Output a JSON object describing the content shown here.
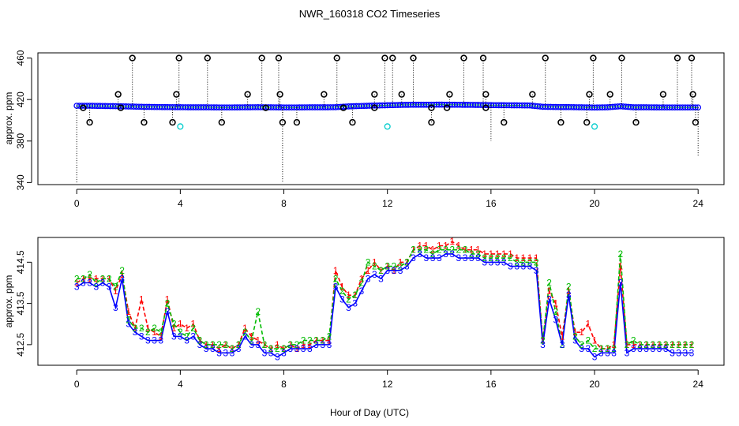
{
  "chart_data": [
    {
      "type": "scatter",
      "title": "NWR_160318  CO2 Timeseries",
      "xlabel": "",
      "ylabel": "approx. ppm",
      "xlim": [
        -1.5,
        25
      ],
      "ylim": [
        338,
        465
      ],
      "xticks": [
        "0",
        "4",
        "8",
        "12",
        "16",
        "20",
        "24"
      ],
      "yticks": [
        "340",
        "380",
        "420",
        "460"
      ],
      "grid": false,
      "baseline": {
        "x": [
          0.0,
          0.5,
          1.0,
          1.5,
          2.0,
          2.5,
          3.0,
          3.5,
          4.0,
          4.5,
          5.0,
          5.5,
          6.0,
          6.5,
          7.0,
          7.5,
          8.0,
          8.5,
          9.0,
          9.5,
          10.0,
          10.5,
          11.0,
          11.5,
          12.0,
          12.5,
          13.0,
          13.5,
          14.0,
          14.5,
          15.0,
          15.5,
          16.0,
          16.5,
          17.0,
          17.5,
          18.0,
          18.5,
          19.0,
          19.5,
          20.0,
          20.5,
          21.0,
          21.5,
          22.0,
          22.5,
          23.0,
          23.5,
          24.0
        ],
        "y": [
          414.0,
          414.0,
          413.8,
          413.6,
          413.3,
          413.0,
          412.8,
          412.7,
          412.6,
          412.5,
          412.5,
          412.4,
          412.4,
          412.5,
          412.6,
          412.5,
          412.4,
          412.4,
          412.5,
          412.5,
          412.6,
          413.4,
          413.8,
          414.2,
          414.5,
          414.8,
          415.0,
          415.0,
          415.1,
          415.0,
          414.9,
          414.8,
          414.6,
          414.5,
          414.4,
          414.3,
          413.0,
          412.8,
          412.7,
          412.5,
          412.3,
          412.5,
          413.5,
          412.5,
          412.5,
          412.4,
          412.4,
          412.4,
          412.4
        ]
      },
      "series": [
        {
          "name": "",
          "color": "#000000",
          "marker": "open-circle",
          "x": [
            1.6,
            2.15,
            3.85,
            3.95,
            5.05,
            7.15,
            7.8,
            9.55,
            10.05,
            11.5,
            11.9,
            12.2,
            12.55,
            13.0,
            13.7,
            14.4,
            14.95,
            15.7,
            15.8,
            17.6,
            18.1,
            19.8,
            19.95,
            20.6,
            21.05,
            22.65,
            23.2,
            23.75,
            23.8,
            0.25,
            0.5,
            1.7,
            2.6,
            3.7,
            5.6,
            6.6,
            7.3,
            7.85,
            7.95,
            8.5,
            10.3,
            10.65,
            11.5,
            13.7,
            14.3,
            15.8,
            16.5,
            18.7,
            19.7,
            21.6,
            23.9
          ],
          "y": [
            425,
            460,
            425,
            460,
            460,
            460,
            460,
            425,
            460,
            425,
            460,
            460,
            425,
            460,
            412,
            425,
            460,
            460,
            425,
            425,
            460,
            425,
            460,
            425,
            460,
            425,
            460,
            460,
            425,
            412,
            398,
            412,
            398,
            398,
            398,
            425,
            412,
            425,
            398,
            398,
            412,
            398,
            412,
            398,
            412,
            412,
            398,
            398,
            398,
            398,
            398
          ]
        },
        {
          "name": "",
          "color": "#00cccc",
          "marker": "open-circle",
          "x": [
            4.0,
            12.0,
            20.0
          ],
          "y": [
            394,
            394,
            394
          ]
        },
        {
          "name": "",
          "color": "#000000",
          "marker": "spike",
          "x": [
            0.0,
            7.95,
            16.0,
            24.0
          ],
          "y": [
            340,
            340,
            380,
            365
          ]
        }
      ]
    },
    {
      "type": "line",
      "title": "",
      "xlabel": "Hour of Day (UTC)",
      "ylabel": "approx. ppm",
      "xlim": [
        -1.5,
        25
      ],
      "ylim": [
        412.0,
        415.1
      ],
      "xticks": [
        "0",
        "4",
        "8",
        "12",
        "16",
        "20",
        "24"
      ],
      "yticks": [
        "412.5",
        "413.5",
        "414.5"
      ],
      "grid": false,
      "series": [
        {
          "name": "1",
          "color": "#ff0000",
          "x": [
            0.0,
            0.25,
            0.5,
            0.75,
            1.0,
            1.25,
            1.5,
            1.75,
            2.0,
            2.25,
            2.5,
            2.75,
            3.0,
            3.25,
            3.5,
            3.75,
            4.0,
            4.25,
            4.5,
            4.75,
            5.0,
            5.25,
            5.5,
            5.75,
            6.0,
            6.25,
            6.5,
            6.75,
            7.0,
            7.25,
            7.5,
            7.75,
            8.0,
            8.25,
            8.5,
            8.75,
            9.0,
            9.25,
            9.5,
            9.75,
            10.0,
            10.25,
            10.5,
            10.75,
            11.0,
            11.25,
            11.5,
            11.75,
            12.0,
            12.25,
            12.5,
            12.75,
            13.0,
            13.25,
            13.5,
            13.75,
            14.0,
            14.25,
            14.5,
            14.75,
            15.0,
            15.25,
            15.5,
            15.75,
            16.0,
            16.25,
            16.5,
            16.75,
            17.0,
            17.25,
            17.5,
            17.75,
            18.0,
            18.25,
            18.5,
            18.75,
            19.0,
            19.25,
            19.5,
            19.75,
            20.0,
            20.25,
            20.5,
            20.75,
            21.0,
            21.25,
            21.5,
            21.75,
            22.0,
            22.25,
            22.5,
            22.75,
            23.0,
            23.25,
            23.5,
            23.75
          ],
          "y": [
            414.0,
            414.1,
            414.1,
            414.1,
            414.1,
            414.1,
            413.8,
            414.2,
            413.3,
            412.9,
            413.6,
            412.9,
            412.8,
            412.7,
            413.6,
            412.9,
            413.0,
            412.9,
            413.0,
            412.6,
            412.5,
            412.5,
            412.4,
            412.5,
            412.4,
            412.5,
            412.9,
            412.7,
            412.6,
            412.5,
            412.4,
            412.5,
            412.4,
            412.5,
            412.4,
            412.5,
            412.5,
            412.6,
            412.6,
            412.6,
            414.3,
            413.9,
            413.7,
            413.7,
            414.1,
            414.3,
            414.5,
            414.3,
            414.4,
            414.3,
            414.5,
            414.5,
            414.8,
            414.9,
            414.9,
            414.8,
            414.9,
            414.9,
            415.0,
            414.9,
            414.8,
            414.8,
            414.8,
            414.7,
            414.7,
            414.7,
            414.7,
            414.7,
            414.6,
            414.6,
            414.6,
            414.6,
            412.6,
            413.8,
            413.5,
            412.7,
            413.8,
            412.8,
            412.8,
            413.0,
            412.6,
            412.4,
            412.4,
            412.5,
            414.4,
            412.5,
            412.5,
            412.5,
            412.5,
            412.5,
            412.5,
            412.5,
            412.5,
            412.5,
            412.5,
            412.5
          ]
        },
        {
          "name": "2",
          "color": "#00bb00",
          "x": [
            0.0,
            0.25,
            0.5,
            0.75,
            1.0,
            1.25,
            1.5,
            1.75,
            2.0,
            2.25,
            2.5,
            2.75,
            3.0,
            3.25,
            3.5,
            3.75,
            4.0,
            4.25,
            4.5,
            4.75,
            5.0,
            5.25,
            5.5,
            5.75,
            6.0,
            6.25,
            6.5,
            6.75,
            7.0,
            7.25,
            7.5,
            7.75,
            8.0,
            8.25,
            8.5,
            8.75,
            9.0,
            9.25,
            9.5,
            9.75,
            10.0,
            10.25,
            10.5,
            10.75,
            11.0,
            11.25,
            11.5,
            11.75,
            12.0,
            12.25,
            12.5,
            12.75,
            13.0,
            13.25,
            13.5,
            13.75,
            14.0,
            14.25,
            14.5,
            14.75,
            15.0,
            15.25,
            15.5,
            15.75,
            16.0,
            16.25,
            16.5,
            16.75,
            17.0,
            17.25,
            17.5,
            17.75,
            18.0,
            18.25,
            18.5,
            18.75,
            19.0,
            19.25,
            19.5,
            19.75,
            20.0,
            20.25,
            20.5,
            20.75,
            21.0,
            21.25,
            21.5,
            21.75,
            22.0,
            22.25,
            22.5,
            22.75,
            23.0,
            23.25,
            23.5,
            23.75
          ],
          "y": [
            414.1,
            414.1,
            414.2,
            414.0,
            414.1,
            414.1,
            413.9,
            414.3,
            413.1,
            412.9,
            412.9,
            412.8,
            412.9,
            412.8,
            413.5,
            413.0,
            412.8,
            412.7,
            412.9,
            412.6,
            412.5,
            412.5,
            412.5,
            412.5,
            412.4,
            412.5,
            412.8,
            412.6,
            413.3,
            412.5,
            412.4,
            412.4,
            412.4,
            412.5,
            412.5,
            412.6,
            412.6,
            412.6,
            412.6,
            412.7,
            414.1,
            413.8,
            413.6,
            413.7,
            414.0,
            414.5,
            414.4,
            414.3,
            414.4,
            414.4,
            414.4,
            414.5,
            414.8,
            414.8,
            414.8,
            414.7,
            414.8,
            414.8,
            414.8,
            414.8,
            414.8,
            414.7,
            414.7,
            414.6,
            414.6,
            414.6,
            414.6,
            414.6,
            414.5,
            414.5,
            414.5,
            414.5,
            412.6,
            414.0,
            413.3,
            412.5,
            413.9,
            412.7,
            412.5,
            412.6,
            412.4,
            412.4,
            412.4,
            412.4,
            414.7,
            412.5,
            412.6,
            412.5,
            412.5,
            412.5,
            412.5,
            412.5,
            412.5,
            412.5,
            412.5,
            412.5
          ]
        },
        {
          "name": "3",
          "color": "#0000ff",
          "x": [
            0.0,
            0.25,
            0.5,
            0.75,
            1.0,
            1.25,
            1.5,
            1.75,
            2.0,
            2.25,
            2.5,
            2.75,
            3.0,
            3.25,
            3.5,
            3.75,
            4.0,
            4.25,
            4.5,
            4.75,
            5.0,
            5.25,
            5.5,
            5.75,
            6.0,
            6.25,
            6.5,
            6.75,
            7.0,
            7.25,
            7.5,
            7.75,
            8.0,
            8.25,
            8.5,
            8.75,
            9.0,
            9.25,
            9.5,
            9.75,
            10.0,
            10.25,
            10.5,
            10.75,
            11.0,
            11.25,
            11.5,
            11.75,
            12.0,
            12.25,
            12.5,
            12.75,
            13.0,
            13.25,
            13.5,
            13.75,
            14.0,
            14.25,
            14.5,
            14.75,
            15.0,
            15.25,
            15.5,
            15.75,
            16.0,
            16.25,
            16.5,
            16.75,
            17.0,
            17.25,
            17.5,
            17.75,
            18.0,
            18.25,
            18.5,
            18.75,
            19.0,
            19.25,
            19.5,
            19.75,
            20.0,
            20.25,
            20.5,
            20.75,
            21.0,
            21.25,
            21.5,
            21.75,
            22.0,
            22.25,
            22.5,
            22.75,
            23.0,
            23.25,
            23.5,
            23.75
          ],
          "y": [
            413.9,
            414.0,
            414.0,
            413.9,
            414.0,
            413.9,
            413.4,
            414.1,
            413.0,
            412.8,
            412.7,
            412.6,
            412.6,
            412.6,
            413.3,
            412.7,
            412.7,
            412.6,
            412.7,
            412.5,
            412.4,
            412.4,
            412.3,
            412.3,
            412.3,
            412.4,
            412.7,
            412.5,
            412.5,
            412.3,
            412.3,
            412.2,
            412.3,
            412.4,
            412.4,
            412.4,
            412.4,
            412.5,
            412.5,
            412.5,
            413.9,
            413.6,
            413.4,
            413.5,
            413.8,
            414.1,
            414.2,
            414.1,
            414.3,
            414.3,
            414.3,
            414.4,
            414.6,
            414.7,
            414.6,
            414.6,
            414.6,
            414.7,
            414.7,
            414.6,
            414.6,
            414.6,
            414.6,
            414.5,
            414.5,
            414.5,
            414.5,
            414.4,
            414.4,
            414.4,
            414.4,
            414.3,
            412.5,
            413.6,
            413.1,
            412.5,
            413.7,
            412.6,
            412.4,
            412.4,
            412.2,
            412.3,
            412.3,
            412.3,
            414.0,
            412.3,
            412.4,
            412.4,
            412.4,
            412.4,
            412.4,
            412.4,
            412.3,
            412.3,
            412.3,
            412.3
          ]
        }
      ]
    }
  ]
}
